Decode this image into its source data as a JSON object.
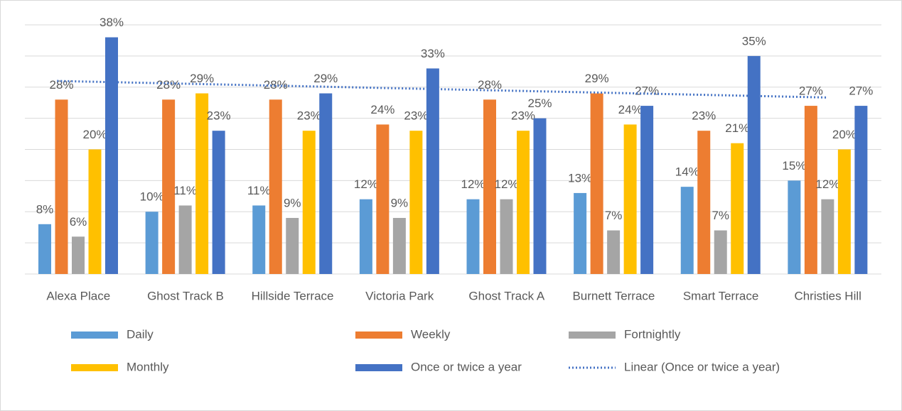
{
  "chart_data": {
    "type": "bar",
    "categories": [
      "Alexa Place",
      "Ghost Track B",
      "Hillside Terrace",
      "Victoria Park",
      "Ghost Track  A",
      "Burnett Terrace",
      "Smart Terrace",
      "Christies Hill"
    ],
    "series": [
      {
        "name": "Daily",
        "color": "#5b9bd5",
        "values": [
          8,
          10,
          11,
          12,
          12,
          13,
          14,
          15
        ],
        "value_labels": [
          "8%",
          "10%",
          "11%",
          "12%",
          "12%",
          "13%",
          "14%",
          "15%"
        ]
      },
      {
        "name": "Weekly",
        "color": "#ed7d31",
        "values": [
          28,
          28,
          28,
          24,
          28,
          29,
          23,
          27
        ],
        "value_labels": [
          "28%",
          "28%",
          "28%",
          "24%",
          "28%",
          "29%",
          "23%",
          "27%"
        ]
      },
      {
        "name": "Fortnightly",
        "color": "#a5a5a5",
        "values": [
          6,
          11,
          9,
          9,
          12,
          7,
          7,
          12
        ],
        "value_labels": [
          "6%",
          "11%",
          "9%",
          "9%",
          "12%",
          "7%",
          "7%",
          "12%"
        ]
      },
      {
        "name": "Monthly",
        "color": "#ffc000",
        "values": [
          20,
          29,
          23,
          23,
          23,
          24,
          21,
          20
        ],
        "value_labels": [
          "20%",
          "29%",
          "23%",
          "23%",
          "23%",
          "24%",
          "21%",
          "20%"
        ]
      },
      {
        "name": "Once or twice a year",
        "color": "#4472c4",
        "values": [
          38,
          23,
          29,
          33,
          25,
          27,
          35,
          27
        ],
        "value_labels": [
          "38%",
          "23%",
          "29%",
          "33%",
          "25%",
          "27%",
          "35%",
          "27%"
        ]
      }
    ],
    "trendline": {
      "name": "Linear (Once or twice a year)",
      "series": 4,
      "color": "#4472c4"
    },
    "ylim": [
      0,
      40
    ],
    "yticks": [
      0,
      5,
      10,
      15,
      20,
      25,
      30,
      35,
      40
    ],
    "grid": true
  }
}
